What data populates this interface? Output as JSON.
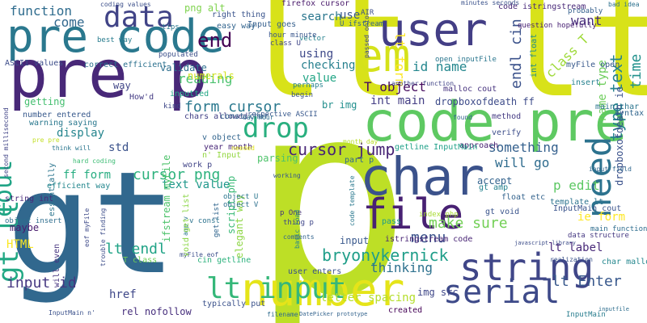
{
  "words": [
    {
      "text": "p",
      "color": "#bddf26"
    },
    {
      "text": "lt lt",
      "color": "#d8e219"
    },
    {
      "text": "gt",
      "color": "#31688e"
    },
    {
      "text": "pre p",
      "color": "#482878"
    },
    {
      "text": "pre code",
      "color": "#2a788e"
    },
    {
      "text": "code pre",
      "color": "#5ec962"
    },
    {
      "text": "char",
      "color": "#3b528b"
    },
    {
      "text": "number",
      "color": "#e5e419"
    },
    {
      "text": "user",
      "color": "#433e85"
    },
    {
      "text": "string",
      "color": "#404688"
    },
    {
      "text": "file",
      "color": "#482173"
    },
    {
      "text": "serial",
      "color": "#3e4a89"
    },
    {
      "text": "data",
      "color": "#414487"
    },
    {
      "text": "em",
      "color": "#d5e21a"
    },
    {
      "text": "cout",
      "color": "#20a486"
    },
    {
      "text": "need",
      "color": "#2c728e"
    },
    {
      "text": "lt input",
      "color": "#35b779"
    },
    {
      "text": "drop",
      "color": "#29af7f"
    },
    {
      "text": "gt lt",
      "color": "#22a884"
    },
    {
      "text": "end",
      "color": "#440154"
    },
    {
      "text": "come",
      "color": "#31688e"
    },
    {
      "text": "function",
      "color": "#2f6c8e"
    },
    {
      "text": "cursor jump",
      "color": "#482576"
    },
    {
      "text": "type text",
      "color": "#26828e"
    },
    {
      "text": "time",
      "color": "#21918c"
    },
    {
      "text": "endl cin",
      "color": "#3b528b"
    },
    {
      "text": "lt form",
      "color": "#fde725"
    },
    {
      "text": "T object",
      "color": "#460b5e"
    },
    {
      "text": "bryonykernick",
      "color": "#1f9e89"
    },
    {
      "text": "cursor png",
      "color": "#2db27d"
    },
    {
      "text": "form cursor",
      "color": "#2a788e"
    },
    {
      "text": "lt endl",
      "color": "#20a386"
    },
    {
      "text": "menu",
      "color": "#3b528b"
    },
    {
      "text": "make sure",
      "color": "#73d056"
    },
    {
      "text": "input id",
      "color": "#453781"
    },
    {
      "text": "lt Enter",
      "color": "#38588c"
    },
    {
      "text": "text value",
      "color": "#1f988b"
    },
    {
      "text": "ff form",
      "color": "#27ad81"
    },
    {
      "text": "thinking",
      "color": "#2d718e"
    },
    {
      "text": "letter spacing",
      "color": "#b5de2b"
    },
    {
      "text": "class T",
      "color": "#9fda3a"
    },
    {
      "text": "want",
      "color": "#472d7b"
    },
    {
      "text": "id name",
      "color": "#24878e"
    },
    {
      "text": "int main",
      "color": "#433d84"
    },
    {
      "text": "reading",
      "color": "#4ac16d"
    },
    {
      "text": "something",
      "color": "#34608d"
    },
    {
      "text": "will go",
      "color": "#2f6c8e"
    },
    {
      "text": "p edit",
      "color": "#5cc863"
    },
    {
      "text": "ie form",
      "color": "#fde725"
    },
    {
      "text": "name type",
      "color": "#6ccd5a"
    },
    {
      "text": "dropboxofdeath ff",
      "color": "#3e4c8a"
    },
    {
      "text": "dropboxofdeath ie",
      "color": "#3b528b"
    },
    {
      "text": "script php",
      "color": "#3aba76"
    },
    {
      "text": "elegant way",
      "color": "#8ed645"
    },
    {
      "text": "lt label",
      "color": "#482979"
    },
    {
      "text": "HTML",
      "color": "#fbe723"
    },
    {
      "text": "display",
      "color": "#25858e"
    },
    {
      "text": "std",
      "color": "#3b528b"
    },
    {
      "text": "using",
      "color": "#3e4989"
    },
    {
      "text": "value",
      "color": "#21a585"
    },
    {
      "text": "search",
      "color": "#2a768e"
    },
    {
      "text": "checking",
      "color": "#27808e"
    },
    {
      "text": "use",
      "color": "#39568c"
    },
    {
      "text": "validate",
      "color": "#2e6f8e"
    },
    {
      "text": "numerals",
      "color": "#d2e21b"
    },
    {
      "text": "getting",
      "color": "#45bf70"
    },
    {
      "text": "way",
      "color": "#404588"
    },
    {
      "text": "href",
      "color": "#3f4889"
    },
    {
      "text": "rel nofollow",
      "color": "#472f7d"
    },
    {
      "text": "maybe",
      "color": "#481c6e"
    },
    {
      "text": "parsing",
      "color": "#4ec36b"
    },
    {
      "text": "input",
      "color": "#38588c"
    },
    {
      "text": "istringstream code",
      "color": "#482475"
    },
    {
      "text": "ifstream myFile",
      "color": "#4ec36b"
    },
    {
      "text": "accept",
      "color": "#33638d"
    },
    {
      "text": "img src",
      "color": "#3f4788"
    },
    {
      "text": "png alt",
      "color": "#7fd34e"
    },
    {
      "text": "code istringstream",
      "color": "#482878"
    },
    {
      "text": "approach",
      "color": "#482071"
    },
    {
      "text": "pass",
      "color": "#1e9b8a"
    },
    {
      "text": "float etc",
      "color": "#33638d"
    },
    {
      "text": "template lt",
      "color": "#2c738e"
    },
    {
      "text": "br img",
      "color": "#218f8d"
    },
    {
      "text": "firefox cursor",
      "color": "#48186a"
    },
    {
      "text": "T class",
      "color": "#70cf57"
    },
    {
      "text": "Input goes",
      "color": "#355f8d"
    },
    {
      "text": "easy way",
      "color": "#32648e"
    },
    {
      "text": "right thing",
      "color": "#3a548c"
    },
    {
      "text": "correct efficient",
      "color": "#2c718e"
    },
    {
      "text": "ASCII values",
      "color": "#3d4d8a"
    },
    {
      "text": "will even",
      "color": "#46337f"
    },
    {
      "text": "essentially",
      "color": "#2b758e"
    },
    {
      "text": "efficient way",
      "color": "#24878e"
    },
    {
      "text": "work p",
      "color": "#414487"
    },
    {
      "text": "v object",
      "color": "#32658e"
    },
    {
      "text": "year month",
      "color": "#482677"
    },
    {
      "text": "n' Input",
      "color": "#93d741"
    },
    {
      "text": "chars allowed",
      "color": "#424086"
    },
    {
      "text": "const char",
      "color": "#34618d"
    },
    {
      "text": "malloc cout",
      "color": "#46327e"
    },
    {
      "text": "getline InputMain",
      "color": "#1fa088"
    },
    {
      "text": "gt void",
      "color": "#3a548c"
    },
    {
      "text": "gt amp",
      "color": "#25838e"
    },
    {
      "text": "main char",
      "color": "#2b758e"
    },
    {
      "text": "myFile open",
      "color": "#38598c"
    },
    {
      "text": "int float",
      "color": "#228c8d"
    },
    {
      "text": "insert",
      "color": "#26818e"
    },
    {
      "text": "verify",
      "color": "#3d4e8a"
    },
    {
      "text": "method",
      "color": "#443a83"
    },
    {
      "text": "syntax",
      "color": "#31668e"
    },
    {
      "text": "part p",
      "color": "#30698e"
    },
    {
      "text": "InputMain cout",
      "color": "#3a548c"
    },
    {
      "text": "index php",
      "color": "#a8db34"
    },
    {
      "text": "data structure",
      "color": "#453882"
    },
    {
      "text": "main function",
      "color": "#2e6d8e"
    },
    {
      "text": "char malloc",
      "color": "#24878e"
    },
    {
      "text": "thing p",
      "color": "#3f4788"
    },
    {
      "text": "p One",
      "color": "#46337e"
    },
    {
      "text": "created",
      "color": "#440256"
    },
    {
      "text": "object U",
      "color": "#2a768e"
    },
    {
      "text": "cin getline",
      "color": "#2db27d"
    },
    {
      "text": "typically put",
      "color": "#3b528b"
    },
    {
      "text": "user enters",
      "color": "#3a538b"
    },
    {
      "text": "get list",
      "color": "#31668e"
    },
    {
      "text": "string int",
      "color": "#482979"
    },
    {
      "text": "object insert",
      "color": "#2e6e8e"
    },
    {
      "text": "vector",
      "color": "#26828e"
    },
    {
      "text": "class U",
      "color": "#404688"
    },
    {
      "text": "hour minute",
      "color": "#39568c"
    },
    {
      "text": "U ifstream",
      "color": "#33638d"
    },
    {
      "text": "AIR",
      "color": "#3c4f8a"
    },
    {
      "text": "open inputFile",
      "color": "#2a768e"
    },
    {
      "text": "question hopefully",
      "color": "#482173"
    },
    {
      "text": "probably",
      "color": "#35608d"
    },
    {
      "text": "populated",
      "color": "#3c4f8a"
    },
    {
      "text": "best way",
      "color": "#287c8e"
    },
    {
      "text": "coding values",
      "color": "#3c4f8a"
    },
    {
      "text": "minutes seconds",
      "color": "#3b528b"
    },
    {
      "text": "bad idea",
      "color": "#2d718e"
    },
    {
      "text": "tips",
      "color": "#2a768e"
    },
    {
      "text": "inputted",
      "color": "#22a785"
    },
    {
      "text": "perhaps",
      "color": "#26818e"
    },
    {
      "text": "begin",
      "color": "#3a548c"
    },
    {
      "text": "respective ASCII",
      "color": "#38588c"
    },
    {
      "text": "number entered",
      "color": "#38598c"
    },
    {
      "text": "warning saying",
      "color": "#2a788e"
    },
    {
      "text": "kind",
      "color": "#3f4889"
    },
    {
      "text": "day hour",
      "color": "#2d708e"
    },
    {
      "text": "found",
      "color": "#33638d"
    },
    {
      "text": "month day",
      "color": "#b8de29"
    },
    {
      "text": "hard coding",
      "color": "#3dbc74"
    },
    {
      "text": "pre pre",
      "color": "#c2df23"
    },
    {
      "text": "think will",
      "color": "#2a768e"
    },
    {
      "text": "code template",
      "color": "#2a788e"
    },
    {
      "text": "basic road",
      "color": "#25838e"
    },
    {
      "text": "comments",
      "color": "#32658e"
    },
    {
      "text": "working",
      "color": "#38588c"
    },
    {
      "text": "trouble finding",
      "color": "#3d4e8a"
    },
    {
      "text": "another function",
      "color": "#414487"
    },
    {
      "text": "passed onto",
      "color": "#3f4889"
    },
    {
      "text": "myFile eof",
      "color": "#3c4f8a"
    },
    {
      "text": "eof myFile",
      "color": "#3e4a89"
    },
    {
      "text": "InputMain n'",
      "color": "#3b518b"
    },
    {
      "text": "filename",
      "color": "#2f6b8e"
    },
    {
      "text": "DatePicker prototype",
      "color": "#33638d"
    },
    {
      "text": "input field",
      "color": "#31678e"
    },
    {
      "text": "realization",
      "color": "#3a538b"
    },
    {
      "text": "javascript library",
      "color": "#3d4d8a"
    },
    {
      "text": "InputMain",
      "color": "#287d8e"
    },
    {
      "text": "object V",
      "color": "#2d708e"
    },
    {
      "text": "v const",
      "color": "#2c728e"
    },
    {
      "text": "amp v",
      "color": "#2a768e"
    },
    {
      "text": "needed",
      "color": "#e2e418"
    },
    {
      "text": "second millisecond",
      "color": "#414487"
    },
    {
      "text": "void get list",
      "color": "#8bd646"
    },
    {
      "text": "How'd",
      "color": "#443b84"
    },
    {
      "text": "inputfile",
      "color": "#2e6e8e"
    }
  ]
}
